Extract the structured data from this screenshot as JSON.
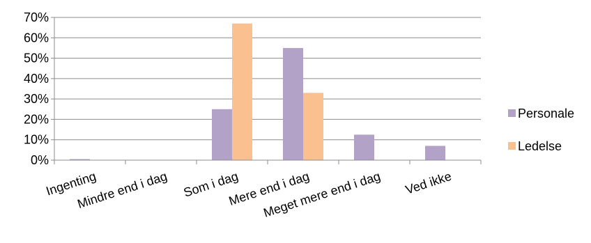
{
  "chart_data": {
    "type": "bar",
    "categories": [
      "Ingenting",
      "Mindre end i dag",
      "Som i dag",
      "Mere end i dag",
      "Meget mere end i dag",
      "Ved ikke"
    ],
    "series": [
      {
        "name": "Personale",
        "color": "#b3a2c7",
        "values": [
          0.5,
          0,
          25,
          55,
          12.5,
          7
        ]
      },
      {
        "name": "Ledelse",
        "color": "#fac090",
        "values": [
          0,
          0,
          67,
          33,
          0,
          0
        ]
      }
    ],
    "yticks": [
      "0%",
      "10%",
      "20%",
      "30%",
      "40%",
      "50%",
      "60%",
      "70%"
    ],
    "ylim": [
      0,
      70
    ],
    "grid": true,
    "legend_position": "right",
    "title": "",
    "xlabel": "",
    "ylabel": ""
  }
}
